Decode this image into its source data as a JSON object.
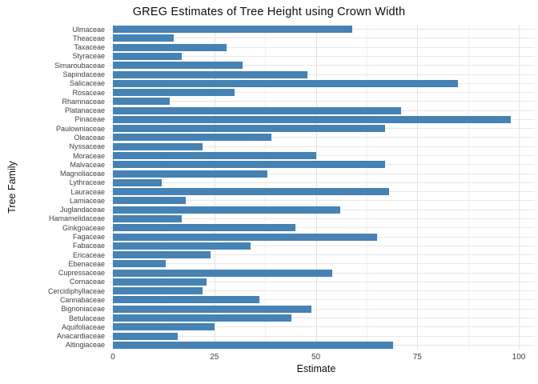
{
  "chart_data": {
    "type": "bar",
    "orientation": "horizontal",
    "title": "GREG Estimates of Tree Height using Crown Width",
    "xlabel": "Estimate",
    "ylabel": "Tree Family",
    "xlim": [
      0,
      100
    ],
    "x_ticks": [
      0,
      25,
      50,
      75,
      100
    ],
    "x_minor_ticks": [
      12.5,
      37.5,
      62.5,
      87.5
    ],
    "grid": "major and minor vertical gridlines, horizontal gridline per category, light gray on white",
    "legend": "none",
    "bar_color": "#4682B4",
    "axis_text_color": "#3f3f3f",
    "categories": [
      "Ulmaceae",
      "Theaceae",
      "Taxaceae",
      "Styraceae",
      "Simaroubaceae",
      "Sapindaceae",
      "Salicaceae",
      "Rosaceae",
      "Rhamnaceae",
      "Platanaceae",
      "Pinaceae",
      "Paulowniaceae",
      "Oleaceae",
      "Nyssaceae",
      "Moraceae",
      "Malvaceae",
      "Magnoliaceae",
      "Lythraceae",
      "Lauraceae",
      "Lamiaceae",
      "Juglandaceae",
      "Hamamelidaceae",
      "Ginkgoaceae",
      "Fagaceae",
      "Fabaceae",
      "Ericaceae",
      "Ebenaceae",
      "Cupressaceae",
      "Cornaceae",
      "Cercidiphyllaceae",
      "Cannabaceae",
      "Bignoniaceae",
      "Betulaceae",
      "Aquifoliaceae",
      "Anacardiaceae",
      "Altingiaceae"
    ],
    "values": [
      59,
      15,
      28,
      17,
      32,
      48,
      85,
      30,
      14,
      71,
      98,
      67,
      39,
      22,
      50,
      67,
      38,
      12,
      68,
      18,
      56,
      17,
      45,
      65,
      34,
      24,
      13,
      54,
      23,
      22,
      36,
      49,
      44,
      25,
      16,
      69
    ]
  }
}
